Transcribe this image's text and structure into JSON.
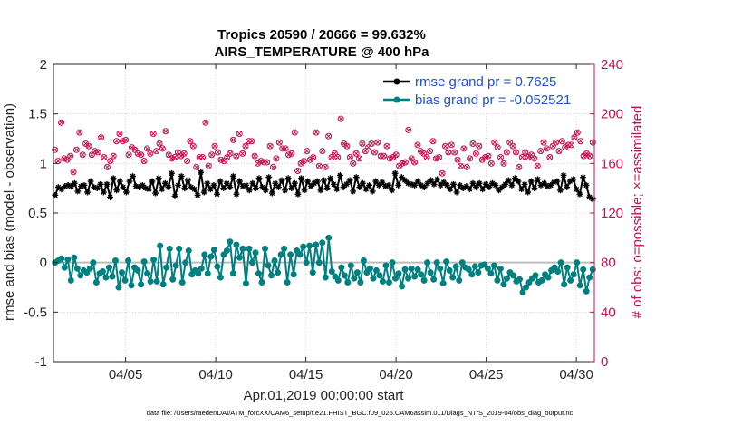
{
  "chart_data": {
    "type": "line",
    "title": "Tropics 20590 / 20666 = 99.632%",
    "subtitle": "AIRS_TEMPERATURE @ 400 hPa",
    "xlabel": "Apr.01,2019 00:00:00 start",
    "ylabel": "rmse and bias (model - observation)",
    "ylabel_right": "# of obs: o=possible; ×=assimilated",
    "footnote": "data file: /Users/raeder/DAI/ATM_forcXX/CAM6_setup/f.e21.FHIST_BGC.f09_025.CAM6assim.011/Diags_NTrS_2019-04/obs_diag_output.nc",
    "xlim": [
      1,
      31
    ],
    "ylim": [
      -1,
      2
    ],
    "ylim_right": [
      0,
      240
    ],
    "x_tick_values": [
      5,
      10,
      15,
      20,
      25,
      30
    ],
    "x_tick_labels": [
      "04/05",
      "04/10",
      "04/15",
      "04/20",
      "04/25",
      "04/30"
    ],
    "y_ticks": [
      "-1",
      "-0.5",
      "0",
      "0.5",
      "1",
      "1.5",
      "2"
    ],
    "y_tick_values": [
      -1,
      -0.5,
      0,
      0.5,
      1,
      1.5,
      2
    ],
    "y_ticks_right": [
      "0",
      "40",
      "80",
      "120",
      "160",
      "200",
      "240"
    ],
    "y_tick_values_right": [
      0,
      40,
      80,
      120,
      160,
      200,
      240
    ],
    "legend_position": "top-right",
    "grid": true,
    "colors": {
      "rmse": "#000000",
      "bias": "#008080",
      "obs": "#c8104e",
      "legend_text": "#1f4fe0",
      "zero_line": "#bdbdbd",
      "grid": "#e6a8c8"
    },
    "series": [
      {
        "name": "rmse grand pr = 0.7625",
        "legend": "rmse grand pr = 0.7625",
        "color": "#000000",
        "marker": "star",
        "axis": "left",
        "values": [
          0.68,
          0.76,
          0.74,
          0.77,
          0.78,
          0.77,
          0.8,
          0.72,
          0.77,
          0.78,
          0.71,
          0.82,
          0.76,
          0.75,
          0.79,
          0.71,
          0.79,
          0.66,
          0.85,
          0.73,
          0.82,
          0.76,
          0.71,
          0.82,
          0.87,
          0.77,
          0.76,
          0.78,
          0.75,
          0.74,
          0.82,
          0.7,
          0.85,
          0.74,
          0.8,
          0.76,
          0.9,
          0.67,
          0.78,
          0.87,
          0.75,
          0.83,
          0.76,
          0.74,
          0.68,
          0.91,
          0.71,
          0.8,
          0.74,
          0.78,
          0.69,
          0.82,
          0.75,
          0.8,
          0.76,
          0.87,
          0.69,
          0.82,
          0.77,
          0.78,
          0.73,
          0.8,
          0.75,
          0.85,
          0.76,
          0.73,
          0.86,
          0.7,
          0.8,
          0.76,
          0.83,
          0.73,
          0.85,
          0.75,
          0.8,
          0.69,
          0.85,
          0.73,
          0.82,
          0.77,
          0.8,
          0.82,
          0.73,
          0.83,
          0.75,
          0.85,
          0.79,
          0.74,
          0.88,
          0.76,
          0.79,
          0.83,
          0.72,
          0.86,
          0.76,
          0.8,
          0.74,
          0.78,
          0.72,
          0.82,
          0.78,
          0.81,
          0.77,
          0.78,
          0.73,
          0.9,
          0.78,
          0.86,
          0.83,
          0.8,
          0.79,
          0.78,
          0.82,
          0.78,
          0.76,
          0.8,
          0.83,
          0.79,
          0.84,
          0.78,
          0.81,
          0.78,
          0.74,
          0.79,
          0.71,
          0.78,
          0.75,
          0.77,
          0.74,
          0.8,
          0.76,
          0.8,
          0.74,
          0.79,
          0.76,
          0.8,
          0.78,
          0.73,
          0.76,
          0.79,
          0.83,
          0.78,
          0.85,
          0.82,
          0.74,
          0.79,
          0.71,
          0.82,
          0.75,
          0.84,
          0.78,
          0.8,
          0.77,
          0.78,
          0.81,
          0.82,
          0.73,
          0.88,
          0.76,
          0.82,
          0.84,
          0.74,
          0.69,
          0.86,
          0.78,
          0.66,
          0.64
        ]
      },
      {
        "name": "bias grand pr = -0.052521",
        "legend": "bias grand pr = -0.052521",
        "color": "#008080",
        "marker": "circle",
        "axis": "left",
        "values": [
          0.0,
          0.02,
          0.04,
          -0.05,
          0.03,
          -0.18,
          0.05,
          -0.06,
          -0.13,
          -0.08,
          -0.1,
          -0.06,
          0.0,
          -0.2,
          -0.11,
          -0.09,
          -0.15,
          -0.05,
          -0.14,
          0.02,
          -0.25,
          -0.1,
          -0.18,
          0.02,
          -0.23,
          -0.05,
          -0.08,
          -0.22,
          0.01,
          -0.11,
          -0.19,
          0.03,
          -0.19,
          0.17,
          -0.22,
          -0.05,
          0.14,
          -0.17,
          -0.03,
          0.14,
          -0.2,
          0.0,
          0.12,
          -0.12,
          -0.08,
          -0.11,
          -0.06,
          0.08,
          -0.11,
          0.06,
          0.13,
          -0.04,
          -0.15,
          0.08,
          0.12,
          0.21,
          -0.11,
          0.18,
          0.05,
          0.14,
          -0.21,
          0.14,
          0.0,
          0.1,
          -0.11,
          -0.2,
          0.14,
          -0.03,
          -0.13,
          0.02,
          -0.1,
          0.08,
          0.14,
          -0.2,
          0.08,
          -0.12,
          0.12,
          0.08,
          0.16,
          0.0,
          0.17,
          -0.1,
          0.18,
          0.0,
          0.2,
          -0.15,
          0.25,
          -0.09,
          -0.14,
          -0.18,
          -0.05,
          -0.13,
          -0.2,
          -0.03,
          -0.16,
          -0.1,
          -0.2,
          0.02,
          -0.1,
          -0.06,
          -0.16,
          -0.08,
          -0.13,
          -0.19,
          -0.03,
          -0.2,
          0.0,
          -0.16,
          -0.11,
          -0.24,
          -0.07,
          -0.16,
          -0.06,
          -0.14,
          -0.07,
          -0.12,
          -0.18,
          0.0,
          -0.1,
          -0.17,
          0.0,
          -0.06,
          -0.21,
          0.01,
          -0.08,
          -0.15,
          -0.04,
          -0.18,
          0.0,
          -0.05,
          -0.07,
          -0.12,
          -0.04,
          -0.1,
          -0.03,
          -0.02,
          -0.06,
          -0.11,
          -0.03,
          -0.18,
          -0.06,
          -0.22,
          -0.16,
          -0.1,
          -0.13,
          -0.19,
          -0.17,
          -0.3,
          -0.25,
          -0.2,
          -0.16,
          -0.13,
          -0.2,
          -0.18,
          -0.12,
          -0.15,
          -0.08,
          -0.05,
          -0.09,
          0.0,
          -0.22,
          -0.05,
          -0.18,
          -0.12,
          0.0,
          -0.23,
          -0.07,
          -0.29,
          -0.15,
          -0.07
        ]
      },
      {
        "name": "possible",
        "color": "#c8104e",
        "marker": "open-circle",
        "axis": "right",
        "values": [
          171,
          162,
          193,
          164,
          163,
          166,
          153,
          171,
          185,
          167,
          176,
          174,
          167,
          170,
          169,
          181,
          165,
          157,
          162,
          166,
          178,
          184,
          178,
          179,
          167,
          173,
          171,
          168,
          167,
          162,
          172,
          168,
          184,
          170,
          176,
          172,
          186,
          167,
          164,
          165,
          169,
          166,
          168,
          162,
          178,
          174,
          157,
          165,
          165,
          193,
          158,
          167,
          174,
          169,
          163,
          162,
          165,
          168,
          179,
          166,
          184,
          168,
          174,
          178,
          178,
          166,
          160,
          162,
          161,
          161,
          174,
          157,
          164,
          177,
          172,
          172,
          167,
          168,
          185,
          154,
          160,
          162,
          170,
          163,
          165,
          185,
          158,
          170,
          157,
          182,
          165,
          168,
          165,
          196,
          176,
          174,
          165,
          160,
          168,
          164,
          176,
          170,
          173,
          176,
          169,
          177,
          166,
          166,
          174,
          164,
          165,
          167,
          158,
          160,
          161,
          187,
          164,
          161,
          175,
          170,
          168,
          165,
          170,
          178,
          164,
          165,
          152,
          174,
          169,
          175,
          169,
          163,
          158,
          172,
          157,
          164,
          176,
          168,
          174,
          163,
          165,
          166,
          160,
          177,
          173,
          165,
          160,
          169,
          177,
          174,
          169,
          157,
          165,
          169,
          165,
          167,
          164,
          158,
          170,
          177,
          172,
          165,
          174,
          177,
          170,
          178,
          173,
          175,
          175,
          181,
          185,
          178,
          166,
          168,
          166,
          177
        ]
      },
      {
        "name": "assimilated",
        "color": "#c8104e",
        "marker": "x",
        "axis": "right",
        "values": [
          171,
          162,
          193,
          164,
          163,
          166,
          153,
          171,
          185,
          167,
          176,
          174,
          167,
          170,
          169,
          181,
          165,
          157,
          162,
          166,
          178,
          184,
          178,
          179,
          167,
          173,
          171,
          168,
          167,
          162,
          172,
          168,
          184,
          170,
          176,
          172,
          186,
          167,
          164,
          165,
          169,
          166,
          168,
          162,
          178,
          174,
          157,
          165,
          165,
          193,
          158,
          167,
          174,
          169,
          163,
          162,
          165,
          168,
          179,
          166,
          184,
          168,
          174,
          178,
          178,
          166,
          160,
          162,
          161,
          161,
          174,
          157,
          164,
          177,
          172,
          172,
          167,
          168,
          185,
          154,
          160,
          162,
          170,
          163,
          165,
          185,
          158,
          170,
          157,
          182,
          165,
          168,
          165,
          196,
          176,
          174,
          165,
          160,
          168,
          164,
          176,
          170,
          173,
          176,
          169,
          177,
          166,
          166,
          174,
          164,
          165,
          167,
          158,
          160,
          161,
          187,
          164,
          161,
          175,
          170,
          168,
          165,
          170,
          178,
          164,
          165,
          152,
          174,
          169,
          175,
          169,
          163,
          158,
          172,
          157,
          164,
          176,
          168,
          174,
          163,
          165,
          166,
          160,
          177,
          173,
          165,
          160,
          169,
          177,
          174,
          169,
          157,
          165,
          169,
          165,
          167,
          164,
          158,
          170,
          177,
          172,
          165,
          174,
          177,
          170,
          178,
          173,
          175,
          175,
          181,
          185,
          178,
          166,
          168,
          166,
          177
        ]
      }
    ]
  }
}
